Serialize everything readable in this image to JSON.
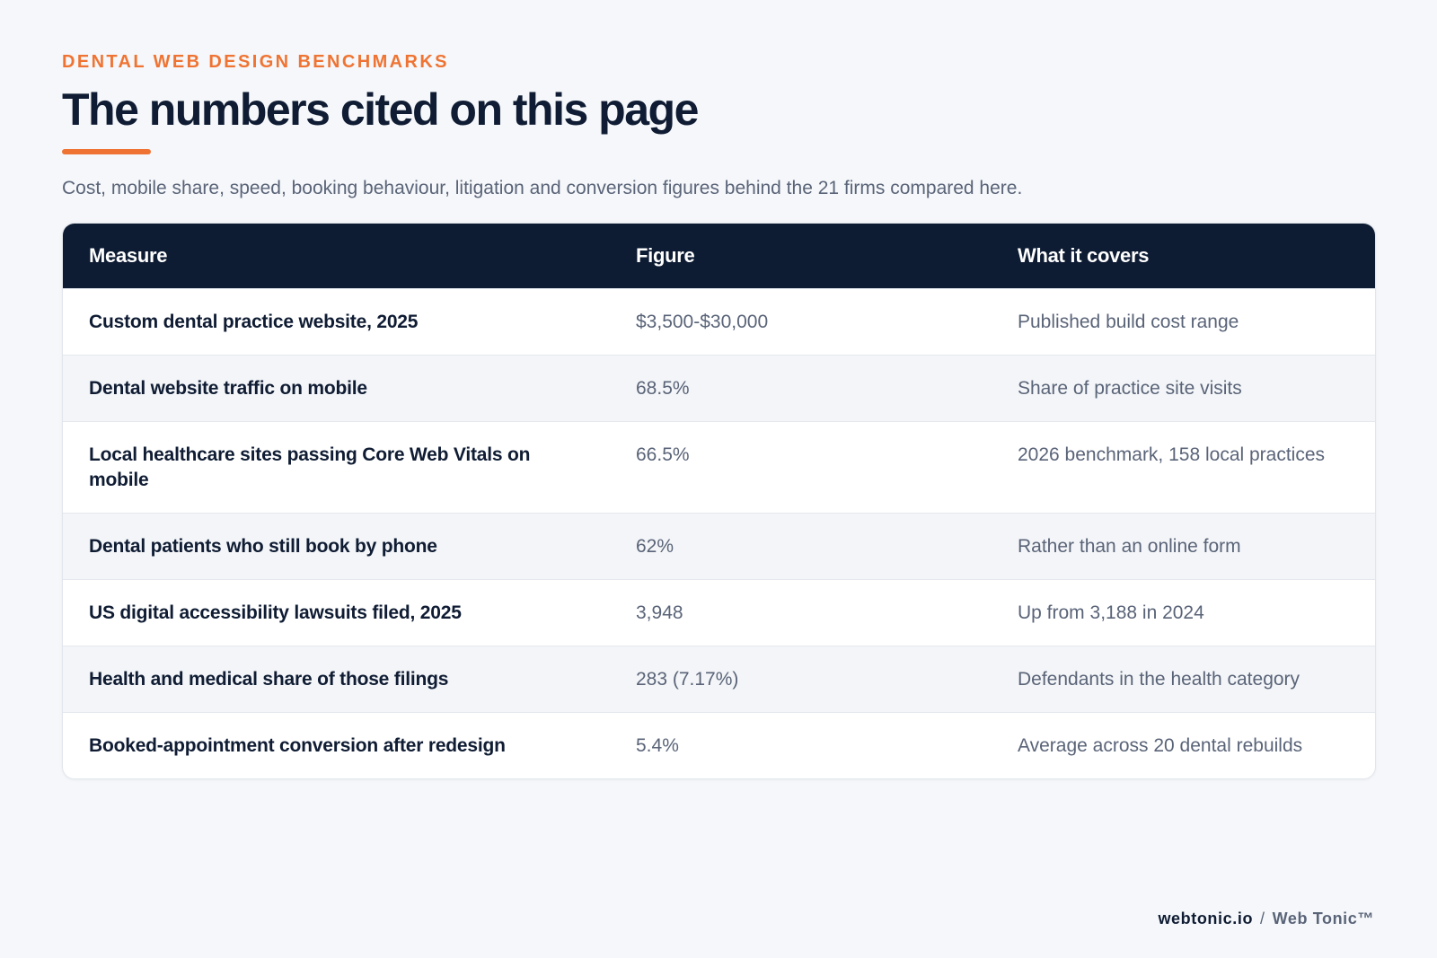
{
  "header": {
    "eyebrow": "DENTAL WEB DESIGN BENCHMARKS",
    "title": "The numbers cited on this page",
    "subtitle": "Cost, mobile share, speed, booking behaviour, litigation and conversion figures behind the 21 firms compared here."
  },
  "table": {
    "columns": [
      "Measure",
      "Figure",
      "What it covers"
    ],
    "rows": [
      {
        "measure": "Custom dental practice website, 2025",
        "figure": "$3,500-$30,000",
        "covers": "Published build cost range"
      },
      {
        "measure": "Dental website traffic on mobile",
        "figure": "68.5%",
        "covers": "Share of practice site visits"
      },
      {
        "measure": "Local healthcare sites passing Core Web Vitals on mobile",
        "figure": "66.5%",
        "covers": "2026 benchmark, 158 local practices"
      },
      {
        "measure": "Dental patients who still book by phone",
        "figure": "62%",
        "covers": "Rather than an online form"
      },
      {
        "measure": "US digital accessibility lawsuits filed, 2025",
        "figure": "3,948",
        "covers": "Up from 3,188 in 2024"
      },
      {
        "measure": "Health and medical share of those filings",
        "figure": "283 (7.17%)",
        "covers": "Defendants in the health category"
      },
      {
        "measure": "Booked-appointment conversion after redesign",
        "figure": "5.4%",
        "covers": "Average across 20 dental rebuilds"
      }
    ]
  },
  "footer": {
    "site": "webtonic.io",
    "separator": "/",
    "brand": "Web Tonic™"
  },
  "colors": {
    "accent": "#ef7433",
    "header_bg": "#0d1b33",
    "page_bg": "#f5f7fa"
  }
}
